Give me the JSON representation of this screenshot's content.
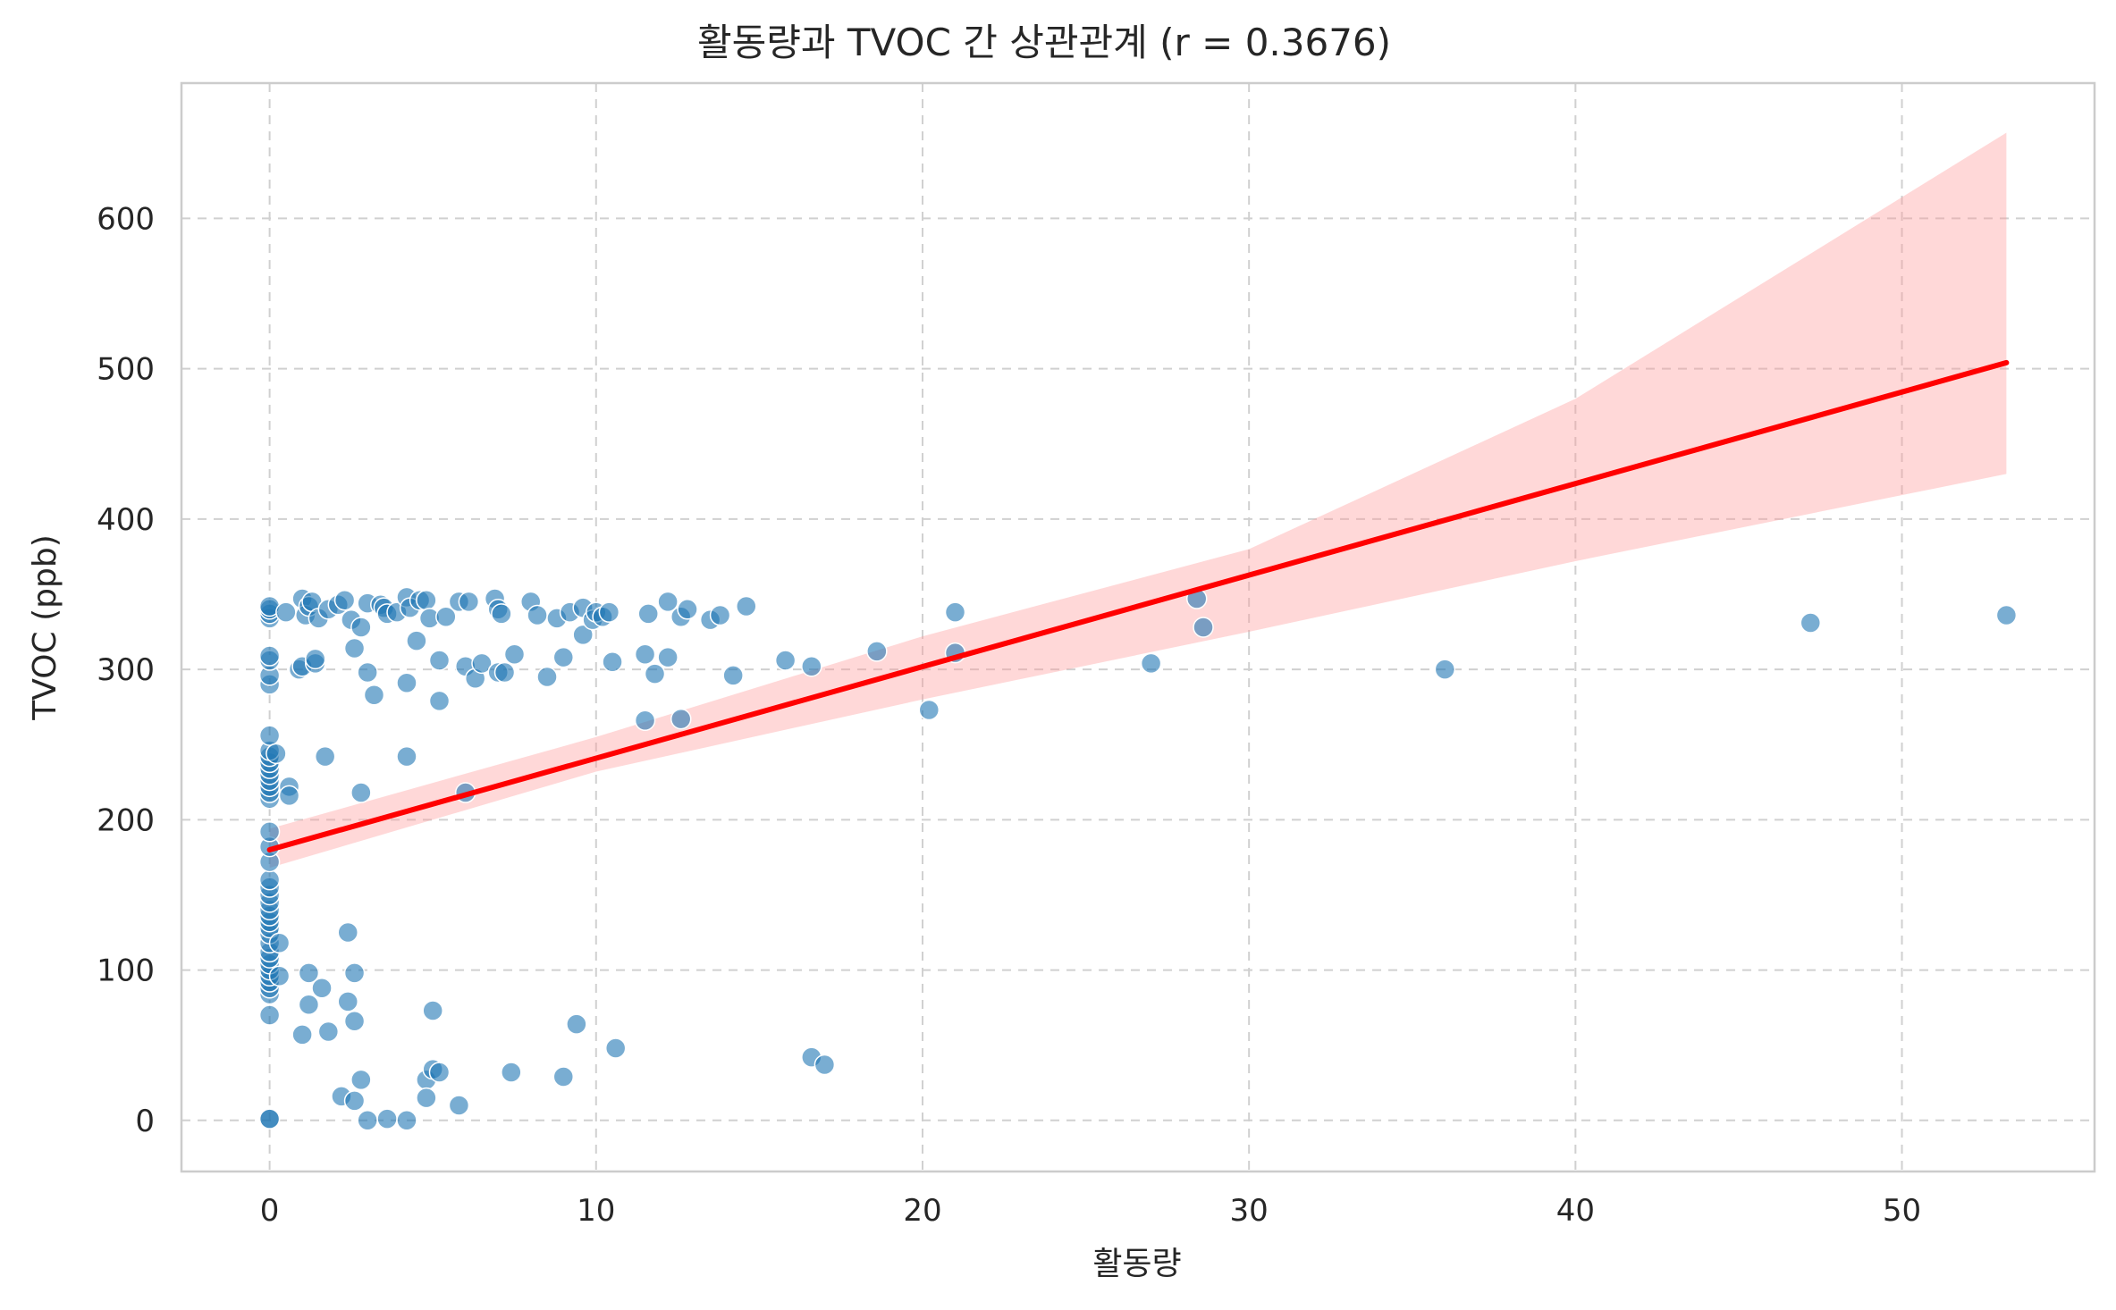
{
  "chart_data": {
    "type": "scatter",
    "title": "활동량과 TVOC 간 상관관계 (r = 0.3676)",
    "xlabel": "활동량",
    "ylabel": "TVOC (ppb)",
    "xlim": [
      -2.7,
      55.9
    ],
    "ylim": [
      -34,
      690
    ],
    "xticks": [
      0,
      10,
      20,
      30,
      40,
      50
    ],
    "yticks": [
      0,
      100,
      200,
      300,
      400,
      500,
      600
    ],
    "grid": true,
    "colors": {
      "points": "#1f77b4",
      "regression_line": "#ff0000",
      "confidence_band": "#ff9999",
      "grid": "#d0d0d0",
      "frame": "#cccccc"
    },
    "points": [
      [
        0,
        1
      ],
      [
        0,
        1
      ],
      [
        0,
        70
      ],
      [
        0,
        84
      ],
      [
        0,
        88
      ],
      [
        0,
        92
      ],
      [
        0,
        96
      ],
      [
        0,
        100
      ],
      [
        0,
        104
      ],
      [
        0,
        108
      ],
      [
        0,
        112
      ],
      [
        0,
        118
      ],
      [
        0,
        124
      ],
      [
        0,
        128
      ],
      [
        0,
        132
      ],
      [
        0,
        136
      ],
      [
        0,
        140
      ],
      [
        0,
        145
      ],
      [
        0,
        150
      ],
      [
        0,
        155
      ],
      [
        0,
        160
      ],
      [
        0,
        172
      ],
      [
        0,
        182
      ],
      [
        0,
        192
      ],
      [
        0,
        214
      ],
      [
        0,
        218
      ],
      [
        0,
        222
      ],
      [
        0,
        226
      ],
      [
        0,
        230
      ],
      [
        0,
        234
      ],
      [
        0,
        238
      ],
      [
        0,
        242
      ],
      [
        0,
        246
      ],
      [
        0,
        256
      ],
      [
        0,
        290
      ],
      [
        0,
        296
      ],
      [
        0,
        306
      ],
      [
        0,
        309
      ],
      [
        0,
        334
      ],
      [
        0,
        337
      ],
      [
        0,
        340
      ],
      [
        0,
        342
      ],
      [
        0.3,
        118
      ],
      [
        0.3,
        96
      ],
      [
        0.2,
        244
      ],
      [
        0.5,
        338
      ],
      [
        0.6,
        222
      ],
      [
        0.6,
        216
      ],
      [
        0.9,
        300
      ],
      [
        1.0,
        347
      ],
      [
        1.0,
        302
      ],
      [
        1.1,
        336
      ],
      [
        1.2,
        342
      ],
      [
        1.3,
        345
      ],
      [
        1.4,
        304
      ],
      [
        1.4,
        307
      ],
      [
        1.5,
        334
      ],
      [
        1.7,
        242
      ],
      [
        1.8,
        340
      ],
      [
        1.0,
        57
      ],
      [
        1.2,
        98
      ],
      [
        1.2,
        77
      ],
      [
        1.6,
        88
      ],
      [
        1.8,
        59
      ],
      [
        2.1,
        343
      ],
      [
        2.2,
        16
      ],
      [
        2.3,
        346
      ],
      [
        2.4,
        125
      ],
      [
        2.4,
        79
      ],
      [
        2.5,
        333
      ],
      [
        2.6,
        314
      ],
      [
        2.6,
        98
      ],
      [
        2.6,
        66
      ],
      [
        2.6,
        13
      ],
      [
        2.8,
        328
      ],
      [
        2.8,
        218
      ],
      [
        2.8,
        27
      ],
      [
        3.0,
        344
      ],
      [
        3.0,
        298
      ],
      [
        3.0,
        0
      ],
      [
        3.2,
        283
      ],
      [
        3.4,
        343
      ],
      [
        3.5,
        341
      ],
      [
        3.6,
        337
      ],
      [
        3.6,
        1
      ],
      [
        3.9,
        338
      ],
      [
        4.2,
        348
      ],
      [
        4.2,
        291
      ],
      [
        4.2,
        242
      ],
      [
        4.2,
        0
      ],
      [
        4.3,
        341
      ],
      [
        4.5,
        319
      ],
      [
        4.6,
        346
      ],
      [
        4.8,
        346
      ],
      [
        4.8,
        27
      ],
      [
        4.8,
        15
      ],
      [
        4.9,
        334
      ],
      [
        5.0,
        73
      ],
      [
        5.0,
        34
      ],
      [
        5.2,
        306
      ],
      [
        5.2,
        279
      ],
      [
        5.2,
        32
      ],
      [
        5.4,
        335
      ],
      [
        5.8,
        345
      ],
      [
        5.8,
        10
      ],
      [
        6.0,
        302
      ],
      [
        6.0,
        218
      ],
      [
        6.1,
        345
      ],
      [
        6.3,
        294
      ],
      [
        6.5,
        304
      ],
      [
        6.9,
        347
      ],
      [
        7.0,
        340
      ],
      [
        7.0,
        298
      ],
      [
        7.1,
        337
      ],
      [
        7.2,
        298
      ],
      [
        7.4,
        32
      ],
      [
        7.5,
        310
      ],
      [
        8.0,
        345
      ],
      [
        8.2,
        336
      ],
      [
        8.5,
        295
      ],
      [
        8.8,
        334
      ],
      [
        9.0,
        308
      ],
      [
        9.0,
        29
      ],
      [
        9.2,
        338
      ],
      [
        9.4,
        64
      ],
      [
        9.6,
        341
      ],
      [
        9.6,
        323
      ],
      [
        9.9,
        333
      ],
      [
        10.0,
        338
      ],
      [
        10.2,
        335
      ],
      [
        10.4,
        338
      ],
      [
        10.5,
        305
      ],
      [
        10.6,
        48
      ],
      [
        11.5,
        310
      ],
      [
        11.5,
        266
      ],
      [
        11.6,
        337
      ],
      [
        11.8,
        297
      ],
      [
        12.2,
        308
      ],
      [
        12.2,
        345
      ],
      [
        12.6,
        335
      ],
      [
        12.6,
        267
      ],
      [
        12.8,
        340
      ],
      [
        13.5,
        333
      ],
      [
        13.8,
        336
      ],
      [
        14.2,
        296
      ],
      [
        14.6,
        342
      ],
      [
        15.8,
        306
      ],
      [
        16.6,
        302
      ],
      [
        16.6,
        42
      ],
      [
        17.0,
        37
      ],
      [
        18.6,
        312
      ],
      [
        20.2,
        273
      ],
      [
        21.0,
        338
      ],
      [
        21.0,
        311
      ],
      [
        27.0,
        304
      ],
      [
        28.4,
        347
      ],
      [
        28.6,
        328
      ],
      [
        36.0,
        300
      ],
      [
        47.2,
        331
      ],
      [
        53.2,
        336
      ]
    ],
    "regression": {
      "x": [
        0,
        53.2
      ],
      "y": [
        180,
        504
      ]
    },
    "confidence_band": {
      "x": [
        0,
        10,
        20,
        30,
        40,
        53.2
      ],
      "lower": [
        168,
        232,
        280,
        325,
        372,
        430
      ],
      "upper": [
        194,
        255,
        322,
        380,
        480,
        657
      ]
    }
  }
}
